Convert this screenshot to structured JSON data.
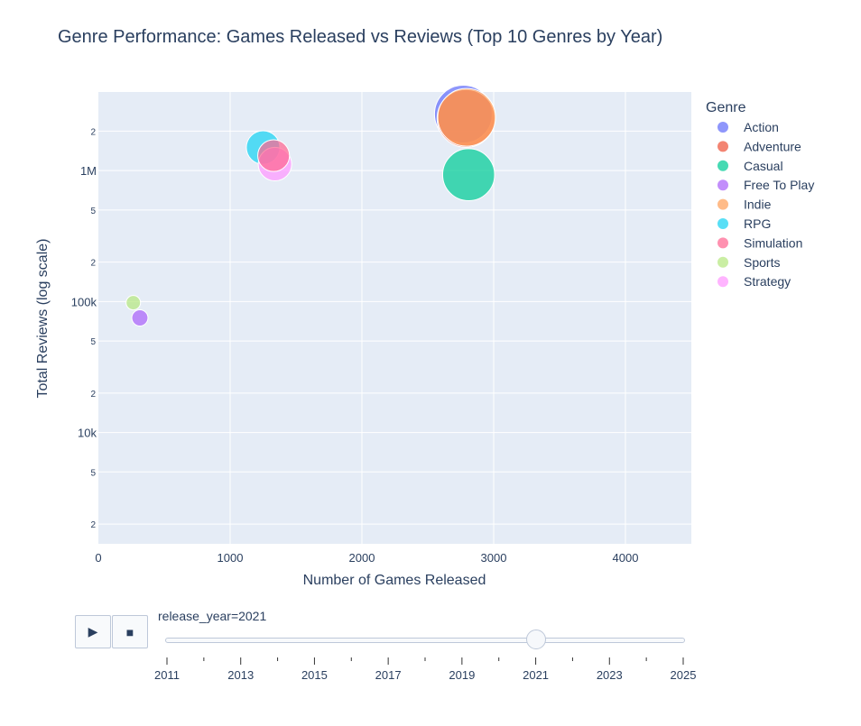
{
  "chart_data": {
    "type": "scatter",
    "title": "Genre Performance: Games Released vs Reviews (Top 10 Genres by Year)",
    "xlabel": "Number of Games Released",
    "ylabel": "Total Reviews (log scale)",
    "xlim": [
      0,
      4500
    ],
    "ylim_log10": [
      3.15,
      6.6
    ],
    "log_y": true,
    "grid": true,
    "legend_title": "Genre",
    "legend_position": "right",
    "x_ticks": [
      0,
      1000,
      2000,
      3000,
      4000
    ],
    "x_tick_labels": [
      "0",
      "1000",
      "2000",
      "3000",
      "4000"
    ],
    "y_major_ticks": [
      {
        "value": 10000,
        "label": "10k"
      },
      {
        "value": 100000,
        "label": "100k"
      },
      {
        "value": 1000000,
        "label": "1M"
      }
    ],
    "y_minor_ticks": [
      {
        "value": 2000,
        "label": "2"
      },
      {
        "value": 5000,
        "label": "5"
      },
      {
        "value": 20000,
        "label": "2"
      },
      {
        "value": 50000,
        "label": "5"
      },
      {
        "value": 200000,
        "label": "2"
      },
      {
        "value": 500000,
        "label": "5"
      },
      {
        "value": 2000000,
        "label": "2"
      }
    ],
    "series": [
      {
        "name": "Action",
        "color": "#636efa",
        "x": 2770,
        "y": 2700000,
        "size": 1.0
      },
      {
        "name": "Adventure",
        "color": "#ef553b",
        "x": 2790,
        "y": 2500000,
        "size": 1.0
      },
      {
        "name": "Casual",
        "color": "#00cc96",
        "x": 2810,
        "y": 930000,
        "size": 0.9
      },
      {
        "name": "Free To Play",
        "color": "#ab63fa",
        "x": 315,
        "y": 75000,
        "size": 0.28
      },
      {
        "name": "Indie",
        "color": "#ffa15a",
        "x": 2795,
        "y": 2550000,
        "size": 1.0
      },
      {
        "name": "RPG",
        "color": "#19d3f3",
        "x": 1250,
        "y": 1500000,
        "size": 0.58
      },
      {
        "name": "Simulation",
        "color": "#ff6692",
        "x": 1330,
        "y": 1300000,
        "size": 0.55
      },
      {
        "name": "Sports",
        "color": "#b6e880",
        "x": 265,
        "y": 98000,
        "size": 0.25
      },
      {
        "name": "Strategy",
        "color": "#ff97ff",
        "x": 1340,
        "y": 1120000,
        "size": 0.58
      }
    ]
  },
  "controls": {
    "play_icon": "play-icon",
    "stop_icon": "stop-icon",
    "play_glyph": "▶",
    "stop_glyph": "■"
  },
  "slider": {
    "current_label": "release_year=2021",
    "current_value": 2021,
    "min": 2011,
    "max": 2025,
    "labels": [
      "2011",
      "2013",
      "2015",
      "2017",
      "2019",
      "2021",
      "2023",
      "2025"
    ]
  }
}
